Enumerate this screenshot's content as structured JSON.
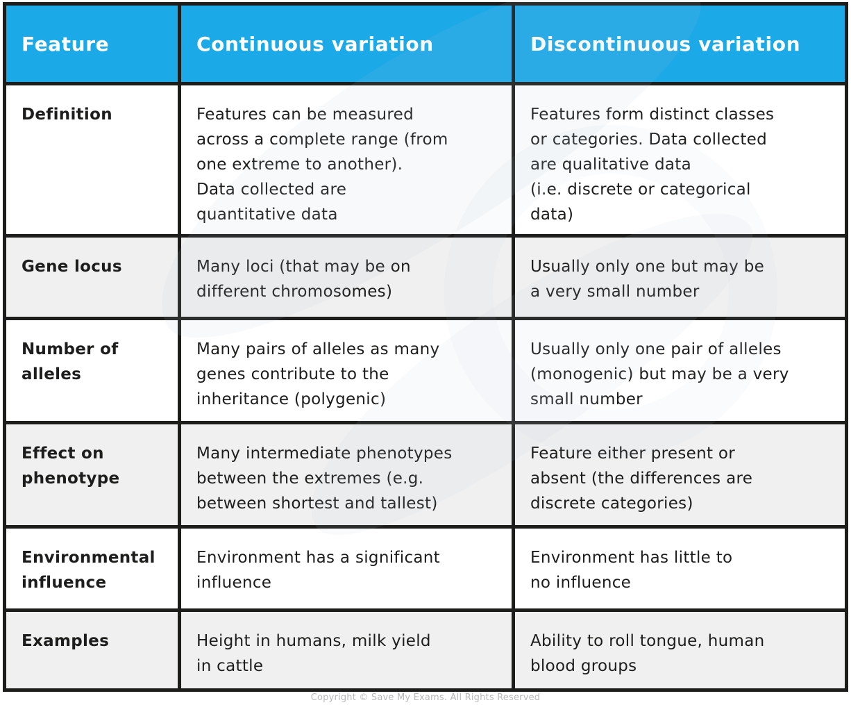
{
  "colors": {
    "header_bg": "#1CA9E8",
    "header_text": "#FFFFFF",
    "border": "#1D1D1B",
    "row_white": "#FFFFFF",
    "row_gray": "#F0F0F0",
    "body_text": "#1D1D1B",
    "footer_text": "#B9B9B9"
  },
  "table": {
    "columns": [
      "Feature",
      "Continuous variation",
      "Discontinuous variation"
    ],
    "rows": [
      {
        "feature": "Definition",
        "continuous": "Features can be measured\nacross a complete range (from\none extreme to another).\nData collected are\nquantitative data",
        "discontinuous": "Features form distinct classes\nor categories. Data collected\nare qualitative data\n(i.e. discrete or categorical\ndata)"
      },
      {
        "feature": "Gene locus",
        "continuous": "Many loci (that may be on\ndifferent chromosomes)",
        "discontinuous": "Usually only one but may be\na very small number"
      },
      {
        "feature": "Number of\nalleles",
        "continuous": "Many pairs of alleles as many\ngenes contribute to the\ninheritance (polygenic)",
        "discontinuous": "Usually only one pair of alleles\n(monogenic) but may be a very\nsmall number"
      },
      {
        "feature": "Effect on\nphenotype",
        "continuous": "Many intermediate phenotypes\nbetween the extremes (e.g.\nbetween shortest and tallest)",
        "discontinuous": "Feature either present or\nabsent (the differences are\ndiscrete categories)"
      },
      {
        "feature": "Environmental\ninfluence",
        "continuous": "Environment has a significant\ninfluence",
        "discontinuous": "Environment has little to\nno influence"
      },
      {
        "feature": "Examples",
        "continuous": "Height in humans, milk yield\nin cattle",
        "discontinuous": "Ability to roll tongue, human\nblood groups"
      }
    ]
  },
  "page": {
    "footer": "Copyright © Save My Exams. All Rights Reserved"
  }
}
